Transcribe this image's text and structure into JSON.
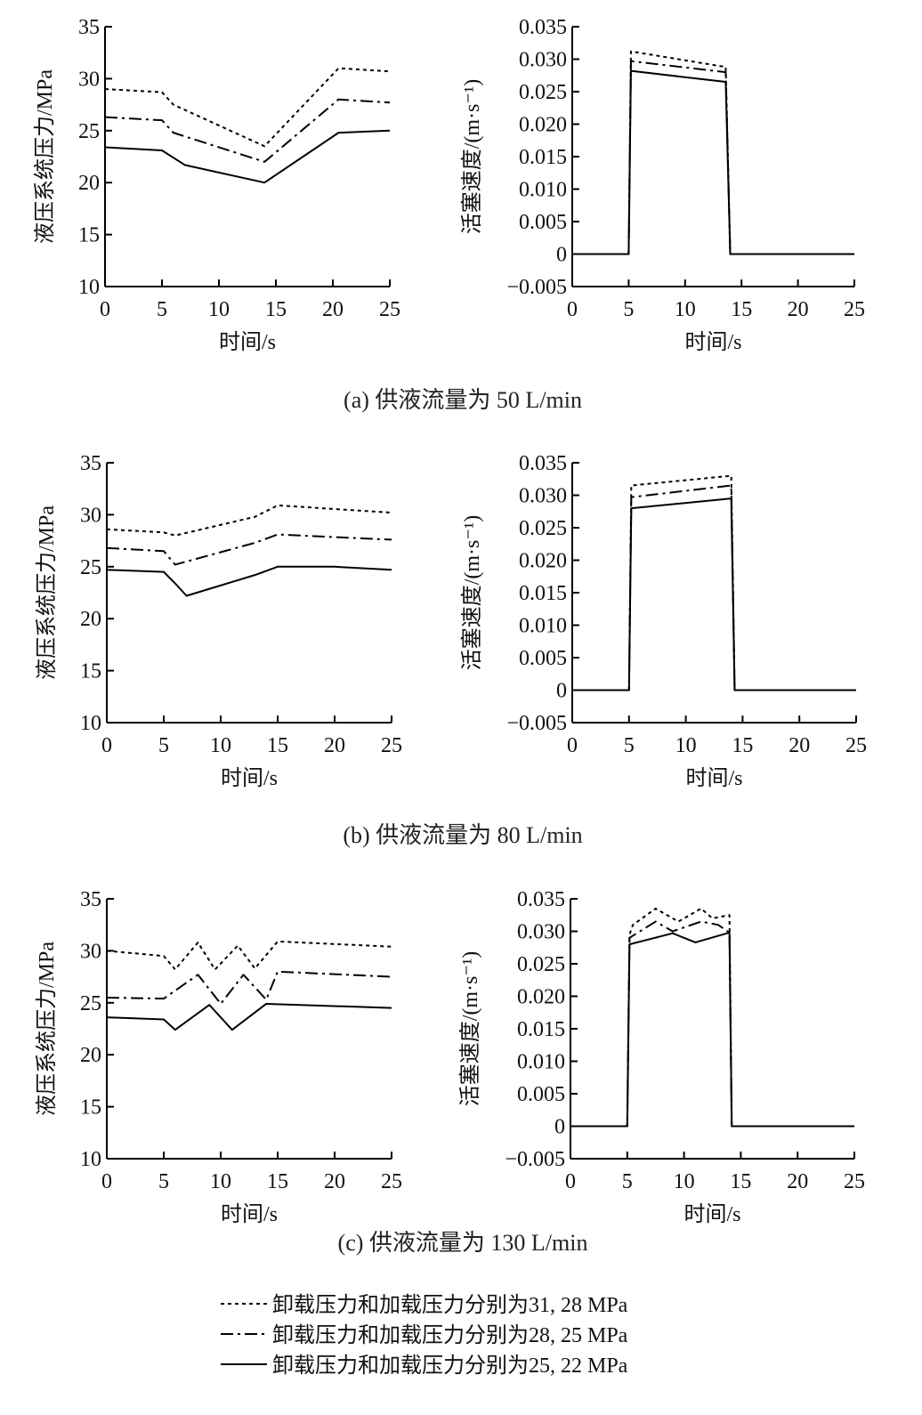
{
  "legend": [
    {
      "label": "卸载压力和加载压力分别为31, 28 MPa",
      "style": "dotted"
    },
    {
      "label": "卸载压力和加载压力分别为28, 25 MPa",
      "style": "dashdot"
    },
    {
      "label": "卸载压力和加载压力分别为25, 22 MPa",
      "style": "solid"
    }
  ],
  "chart_data": [
    {
      "type": "line",
      "id": "a-left",
      "caption": "(a) 供液流量为 50 L/min",
      "xlabel": "时间/s",
      "ylabel": "液压系统压力/MPa",
      "xlim": [
        0,
        25
      ],
      "ylim": [
        10,
        35
      ],
      "xticks": [
        0,
        5,
        10,
        15,
        20,
        25
      ],
      "yticks": [
        10,
        15,
        20,
        25,
        30,
        35
      ],
      "series": [
        {
          "name": "31, 28 MPa",
          "style": "dotted",
          "points": [
            [
              0,
              29
            ],
            [
              5,
              28.7
            ],
            [
              6,
              27.5
            ],
            [
              14,
              23.5
            ],
            [
              20.5,
              31
            ],
            [
              25,
              30.7
            ]
          ]
        },
        {
          "name": "28, 25 MPa",
          "style": "dashdot",
          "points": [
            [
              0,
              26.3
            ],
            [
              5,
              26
            ],
            [
              6,
              24.8
            ],
            [
              14,
              22
            ],
            [
              20.5,
              28
            ],
            [
              25,
              27.7
            ]
          ]
        },
        {
          "name": "25, 22 MPa",
          "style": "solid",
          "points": [
            [
              0,
              23.4
            ],
            [
              5,
              23.1
            ],
            [
              7,
              21.7
            ],
            [
              14,
              20
            ],
            [
              20.5,
              24.8
            ],
            [
              25,
              25
            ]
          ]
        }
      ]
    },
    {
      "type": "line",
      "id": "a-right",
      "xlabel": "时间/s",
      "ylabel": "活塞速度/(m·s⁻¹)",
      "xlim": [
        0,
        25
      ],
      "ylim": [
        -0.005,
        0.035
      ],
      "xticks": [
        0,
        5,
        10,
        15,
        20,
        25
      ],
      "yticks": [
        -0.005,
        0,
        0.005,
        0.01,
        0.015,
        0.02,
        0.025,
        0.03,
        0.035
      ],
      "series": [
        {
          "name": "31, 28 MPa",
          "style": "dotted",
          "points": [
            [
              0,
              0
            ],
            [
              5,
              0
            ],
            [
              5.2,
              0.0312
            ],
            [
              13.6,
              0.0288
            ],
            [
              14,
              0
            ],
            [
              25,
              0
            ]
          ]
        },
        {
          "name": "28, 25 MPa",
          "style": "dashdot",
          "points": [
            [
              0,
              0
            ],
            [
              5,
              0
            ],
            [
              5.2,
              0.0297
            ],
            [
              13.6,
              0.028
            ],
            [
              14,
              0
            ],
            [
              25,
              0
            ]
          ]
        },
        {
          "name": "25, 22 MPa",
          "style": "solid",
          "points": [
            [
              0,
              0
            ],
            [
              5,
              0
            ],
            [
              5.2,
              0.0282
            ],
            [
              13.6,
              0.0265
            ],
            [
              14,
              0
            ],
            [
              25,
              0
            ]
          ]
        }
      ]
    },
    {
      "type": "line",
      "id": "b-left",
      "caption": "(b) 供液流量为 80 L/min",
      "xlabel": "时间/s",
      "ylabel": "液压系统压力/MPa",
      "xlim": [
        0,
        25
      ],
      "ylim": [
        10,
        35
      ],
      "xticks": [
        0,
        5,
        10,
        15,
        20,
        25
      ],
      "yticks": [
        10,
        15,
        20,
        25,
        30,
        35
      ],
      "series": [
        {
          "name": "31, 28 MPa",
          "style": "dotted",
          "points": [
            [
              0,
              28.6
            ],
            [
              5,
              28.3
            ],
            [
              6,
              28
            ],
            [
              13,
              29.8
            ],
            [
              15,
              30.9
            ],
            [
              25,
              30.2
            ]
          ]
        },
        {
          "name": "28, 25 MPa",
          "style": "dashdot",
          "points": [
            [
              0,
              26.8
            ],
            [
              5,
              26.5
            ],
            [
              6,
              25.2
            ],
            [
              13,
              27.3
            ],
            [
              15,
              28.1
            ],
            [
              25,
              27.6
            ]
          ]
        },
        {
          "name": "25, 22 MPa",
          "style": "solid",
          "points": [
            [
              0,
              24.7
            ],
            [
              5,
              24.5
            ],
            [
              6,
              23.4
            ],
            [
              7,
              22.2
            ],
            [
              13,
              24.2
            ],
            [
              15,
              25
            ],
            [
              20,
              25
            ],
            [
              25,
              24.7
            ]
          ]
        }
      ]
    },
    {
      "type": "line",
      "id": "b-right",
      "xlabel": "时间/s",
      "ylabel": "活塞速度/(m·s⁻¹)",
      "xlim": [
        0,
        25
      ],
      "ylim": [
        -0.005,
        0.035
      ],
      "xticks": [
        0,
        5,
        10,
        15,
        20,
        25
      ],
      "yticks": [
        -0.005,
        0,
        0.005,
        0.01,
        0.015,
        0.02,
        0.025,
        0.03,
        0.035
      ],
      "series": [
        {
          "name": "31, 28 MPa",
          "style": "dotted",
          "points": [
            [
              0,
              0
            ],
            [
              5,
              0
            ],
            [
              5.2,
              0.0315
            ],
            [
              14,
              0.033
            ],
            [
              14.3,
              0
            ],
            [
              25,
              0
            ]
          ]
        },
        {
          "name": "28, 25 MPa",
          "style": "dashdot",
          "points": [
            [
              0,
              0
            ],
            [
              5,
              0
            ],
            [
              5.2,
              0.0297
            ],
            [
              14,
              0.0315
            ],
            [
              14.3,
              0
            ],
            [
              25,
              0
            ]
          ]
        },
        {
          "name": "25, 22 MPa",
          "style": "solid",
          "points": [
            [
              0,
              0
            ],
            [
              5,
              0
            ],
            [
              5.2,
              0.028
            ],
            [
              14,
              0.0295
            ],
            [
              14.3,
              0
            ],
            [
              25,
              0
            ]
          ]
        }
      ]
    },
    {
      "type": "line",
      "id": "c-left",
      "caption": "(c) 供液流量为 130 L/min",
      "xlabel": "时间/s",
      "ylabel": "液压系统压力/MPa",
      "xlim": [
        0,
        25
      ],
      "ylim": [
        10,
        35
      ],
      "xticks": [
        0,
        5,
        10,
        15,
        20,
        25
      ],
      "yticks": [
        10,
        15,
        20,
        25,
        30,
        35
      ],
      "series": [
        {
          "name": "31, 28 MPa",
          "style": "dotted",
          "points": [
            [
              0,
              30
            ],
            [
              5,
              29.5
            ],
            [
              6,
              28.2
            ],
            [
              8,
              30.8
            ],
            [
              9.5,
              28.2
            ],
            [
              11.5,
              30.5
            ],
            [
              13,
              28.3
            ],
            [
              15,
              30.9
            ],
            [
              25,
              30.4
            ]
          ]
        },
        {
          "name": "28, 25 MPa",
          "style": "dashdot",
          "points": [
            [
              0,
              25.5
            ],
            [
              5,
              25.4
            ],
            [
              8,
              27.7
            ],
            [
              10,
              24.9
            ],
            [
              12,
              27.7
            ],
            [
              14,
              25.3
            ],
            [
              15,
              28
            ],
            [
              25,
              27.5
            ]
          ]
        },
        {
          "name": "25, 22 MPa",
          "style": "solid",
          "points": [
            [
              0,
              23.6
            ],
            [
              5,
              23.4
            ],
            [
              6,
              22.4
            ],
            [
              9,
              24.8
            ],
            [
              11,
              22.4
            ],
            [
              14,
              24.9
            ],
            [
              25,
              24.5
            ]
          ]
        }
      ]
    },
    {
      "type": "line",
      "id": "c-right",
      "xlabel": "时间/s",
      "ylabel": "活塞速度/(m·s⁻¹)",
      "xlim": [
        0,
        25
      ],
      "ylim": [
        -0.005,
        0.035
      ],
      "xticks": [
        0,
        5,
        10,
        15,
        20,
        25
      ],
      "yticks": [
        -0.005,
        0,
        0.005,
        0.01,
        0.015,
        0.02,
        0.025,
        0.03,
        0.035
      ],
      "series": [
        {
          "name": "31, 28 MPa",
          "style": "dotted",
          "points": [
            [
              0,
              0
            ],
            [
              5,
              0
            ],
            [
              5.2,
              0.0295
            ],
            [
              5.5,
              0.031
            ],
            [
              7.5,
              0.0335
            ],
            [
              9.5,
              0.0315
            ],
            [
              11.5,
              0.0335
            ],
            [
              12.5,
              0.032
            ],
            [
              14,
              0.0325
            ],
            [
              14.2,
              0
            ],
            [
              25,
              0
            ]
          ]
        },
        {
          "name": "28, 25 MPa",
          "style": "dashdot",
          "points": [
            [
              0,
              0
            ],
            [
              5,
              0
            ],
            [
              5.2,
              0.029
            ],
            [
              7.5,
              0.0315
            ],
            [
              9,
              0.03
            ],
            [
              11.5,
              0.0315
            ],
            [
              13,
              0.031
            ],
            [
              14,
              0.0298
            ],
            [
              14.2,
              0
            ],
            [
              25,
              0
            ]
          ]
        },
        {
          "name": "25, 22 MPa",
          "style": "solid",
          "points": [
            [
              0,
              0
            ],
            [
              5,
              0
            ],
            [
              5.2,
              0.028
            ],
            [
              9,
              0.0297
            ],
            [
              11,
              0.0283
            ],
            [
              14,
              0.0298
            ],
            [
              14.2,
              0
            ],
            [
              25,
              0
            ]
          ]
        }
      ]
    }
  ]
}
